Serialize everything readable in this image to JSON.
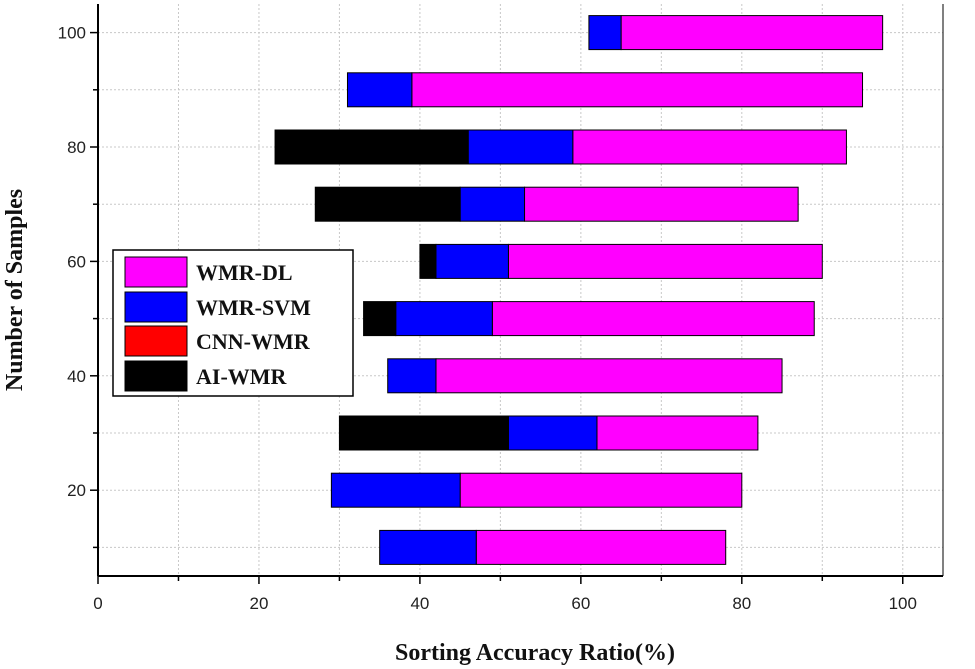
{
  "chart_data": {
    "type": "bar",
    "orientation": "horizontal",
    "stacked": true,
    "xlabel": "Sorting Accuracy Ratio(%)",
    "ylabel": "Number of Samples",
    "xlim": [
      0,
      105
    ],
    "ylim": [
      5,
      105
    ],
    "xticks": [
      0,
      20,
      40,
      60,
      80,
      100
    ],
    "yticks": [
      20,
      40,
      60,
      80,
      100
    ],
    "grid": true,
    "legend_position": "left-middle",
    "categories": [
      10,
      20,
      30,
      40,
      50,
      60,
      70,
      80,
      90,
      100
    ],
    "series": [
      {
        "name": "WMR-DL",
        "color": "#ff00ff",
        "ranges": [
          [
            47,
            78
          ],
          [
            45,
            80
          ],
          [
            62,
            82
          ],
          [
            42,
            85
          ],
          [
            49,
            89
          ],
          [
            51,
            90
          ],
          [
            53,
            87
          ],
          [
            59,
            93
          ],
          [
            39,
            95
          ],
          [
            65,
            97.5
          ]
        ]
      },
      {
        "name": "WMR-SVM",
        "color": "#0000ff",
        "ranges": [
          [
            35,
            47
          ],
          [
            29,
            45
          ],
          [
            51,
            62
          ],
          [
            36,
            42
          ],
          [
            37,
            49
          ],
          [
            42,
            51
          ],
          [
            45,
            53
          ],
          [
            46,
            59
          ],
          [
            31,
            39
          ],
          [
            61,
            65
          ]
        ]
      },
      {
        "name": "CNN-WMR",
        "color": "#ff0000",
        "ranges": []
      },
      {
        "name": "AI-WMR",
        "color": "#000000",
        "ranges": [
          null,
          null,
          [
            30,
            51
          ],
          null,
          [
            33,
            37
          ],
          [
            40,
            42
          ],
          [
            27,
            45
          ],
          [
            22,
            46
          ],
          null,
          null
        ]
      }
    ]
  }
}
